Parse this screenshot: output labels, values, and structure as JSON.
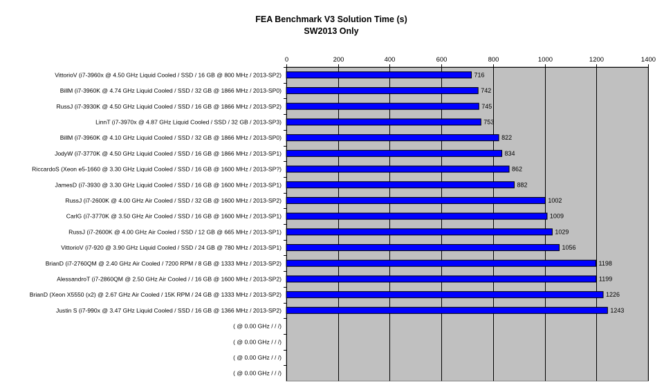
{
  "chart_data": {
    "type": "bar",
    "orientation": "horizontal",
    "title": "FEA Benchmark V3 Solution Time (s)",
    "subtitle": "SW2013 Only",
    "xlim": [
      0,
      1400
    ],
    "x_ticks": [
      0,
      200,
      400,
      600,
      800,
      1000,
      1200,
      1400
    ],
    "x_axis_position": "top",
    "grid": true,
    "legend": "none",
    "colors": {
      "bar": "#0000ff",
      "bar_edge": "#000000",
      "plot_area": "#c0c0c0",
      "gridline": "#000000"
    },
    "categories": [
      "VittorioV (i7-3960x @ 4.50 GHz Liquid Cooled / SSD / 16 GB @ 800 MHz / 2013-SP2)",
      "BillM (i7-3960K @ 4.74 GHz Liquid Cooled / SSD / 32 GB @ 1866 MHz / 2013-SP0)",
      "RussJ (i7-3930K @ 4.50 GHz Liquid Cooled / SSD / 16 GB @ 1866 MHz / 2013-SP2)",
      "LinnT (i7-3970x @ 4.87 GHz Liquid Cooled / SSD / 32 GB / 2013-SP3)",
      "BillM (i7-3960K @ 4.10 GHz Liquid Cooled / SSD / 32 GB @ 1866 MHz / 2013-SP0)",
      "JodyW (i7-3770K @ 4.50 GHz Liquid Cooled / SSD / 16 GB @ 1866 MHz / 2013-SP1)",
      "RiccardoS (Xeon e5-1660 @ 3.30 GHz Liquid Cooled / SSD / 16 GB @ 1600 MHz / 2013-SP?)",
      "JamesD (i7-3930 @ 3.30 GHz Liquid Cooled / SSD / 16 GB @ 1600 MHz / 2013-SP1)",
      "RussJ (i7-2600K @ 4.00 GHz Air Cooled / SSD / 32 GB @ 1600 MHz / 2013-SP2)",
      "CarlG (i7-3770K @ 3.50 GHz Air Cooled / SSD / 16 GB @ 1600 MHz / 2013-SP1)",
      "RussJ (i7-2600K @ 4.00 GHz Air Cooled / SSD / 12 GB @ 665 MHz / 2013-SP1)",
      "VittorioV (i7-920 @ 3.90 GHz Liquid Cooled / SSD / 24 GB @ 780 MHz / 2013-SP1)",
      "BrianD (i7-2760QM @ 2.40 GHz Air Cooled / 7200 RPM / 8 GB @ 1333 MHz / 2013-SP2)",
      "AlessandroT (i7-2860QM @ 2.50 GHz Air Cooled /  / 16 GB @ 1600 MHz / 2013-SP2)",
      "BrianD (Xeon X5550 (x2) @ 2.67 GHz Air Cooled / 15K RPM / 24 GB @ 1333 MHz / 2013-SP2)",
      "Justin S (i7-990x @ 3.47 GHz Liquid Cooled / SSD / 16 GB @ 1366 MHz / 2013-SP2)",
      " ( @ 0.00 GHz  /  /  /)",
      " ( @ 0.00 GHz  /  /  /)",
      " ( @ 0.00 GHz  /  /  /)",
      " ( @ 0.00 GHz  /  /  /)"
    ],
    "values": [
      716,
      742,
      745,
      753,
      822,
      834,
      862,
      882,
      1002,
      1009,
      1029,
      1056,
      1198,
      1199,
      1226,
      1243,
      null,
      null,
      null,
      null
    ]
  }
}
